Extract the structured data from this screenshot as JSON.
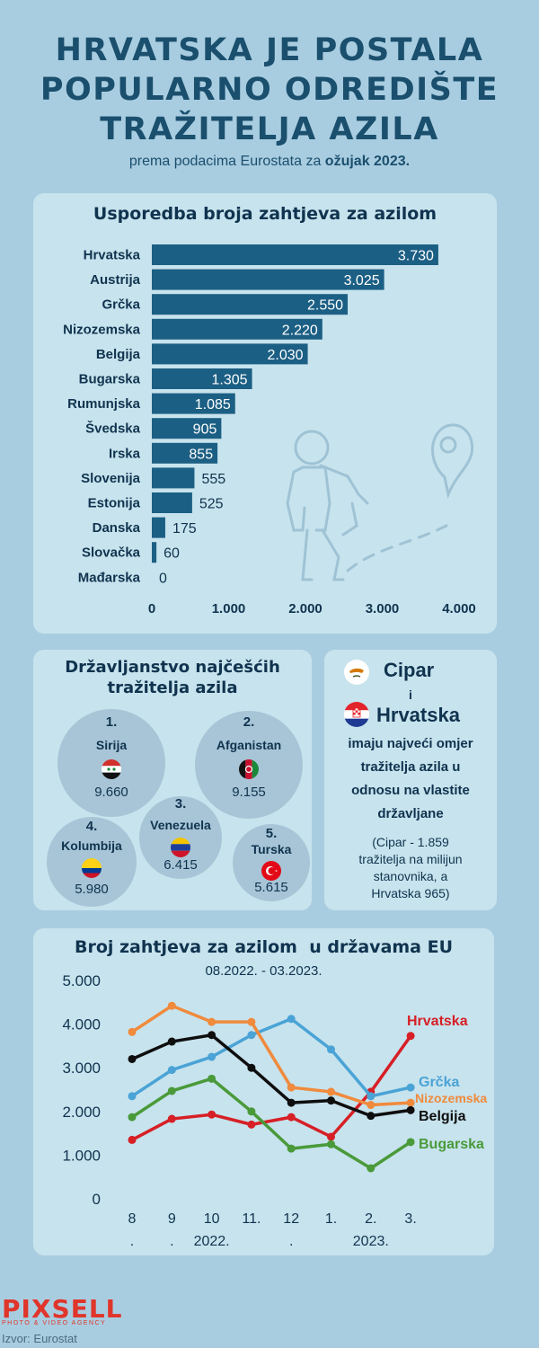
{
  "header": {
    "title_lines": [
      "HRVATSKA JE POSTALA",
      "POPULARNO ODREDIŠTE",
      "TRAŽITELJA AZILA"
    ],
    "subtitle_prefix": "prema podacima Eurostata za ",
    "subtitle_bold": "ožujak 2023."
  },
  "chart_data": [
    {
      "type": "bar",
      "orientation": "horizontal",
      "title": "Usporedba broja zahtjeva za azilom",
      "categories": [
        "Hrvatska",
        "Austrija",
        "Grčka",
        "Nizozemska",
        "Belgija",
        "Bugarska",
        "Rumunjska",
        "Švedska",
        "Irska",
        "Slovenija",
        "Estonija",
        "Danska",
        "Slovačka",
        "Mađarska"
      ],
      "values": [
        3730,
        3025,
        2550,
        2220,
        2030,
        1305,
        1085,
        905,
        855,
        555,
        525,
        175,
        60,
        0
      ],
      "value_labels": [
        "3.730",
        "3.025",
        "2.550",
        "2.220",
        "2.030",
        "1.305",
        "1.085",
        "905",
        "855",
        "555",
        "525",
        "175",
        "60",
        "0"
      ],
      "xlim": [
        0,
        4000
      ],
      "x_ticks": [
        "0",
        "1.000",
        "2.000",
        "3.000",
        "4.000"
      ],
      "bar_color": "#1c5f84"
    },
    {
      "type": "line",
      "title": "Broj zahtjeva za azilom  u državama EU",
      "subtitle": "08.2022. - 03.2023.",
      "x_ticks": [
        {
          "top": "8",
          "bottom": "."
        },
        {
          "top": "9",
          "bottom": "."
        },
        {
          "top": "10",
          "bottom": "2022."
        },
        {
          "top": "11.",
          "bottom": ""
        },
        {
          "top": "12",
          "bottom": "."
        },
        {
          "top": "1.",
          "bottom": ""
        },
        {
          "top": "2.",
          "bottom": "2023."
        },
        {
          "top": "3.",
          "bottom": ""
        }
      ],
      "ylim": [
        0,
        5000
      ],
      "y_ticks": [
        "0",
        "1.000",
        "2.000",
        "3.000",
        "4.000",
        "5.000"
      ],
      "series": [
        {
          "name": "Hrvatska",
          "color": "#d71f26",
          "values": [
            1350,
            1830,
            1930,
            1700,
            1870,
            1420,
            2450,
            3730
          ]
        },
        {
          "name": "Grčka",
          "color": "#4aa3d6",
          "values": [
            2350,
            2950,
            3250,
            3750,
            4120,
            3420,
            2350,
            2550
          ]
        },
        {
          "name": "Nizozemska",
          "color": "#f08a3c",
          "values": [
            3820,
            4420,
            4050,
            4050,
            2550,
            2450,
            2150,
            2200
          ]
        },
        {
          "name": "Belgija",
          "color": "#0e0e0e",
          "values": [
            3200,
            3600,
            3750,
            3000,
            2200,
            2250,
            1900,
            2030
          ]
        },
        {
          "name": "Bugarska",
          "color": "#4a9a3a",
          "values": [
            1870,
            2470,
            2750,
            2000,
            1150,
            1250,
            700,
            1300
          ]
        }
      ]
    }
  ],
  "nationality": {
    "title_lines": [
      "Državljanstvo najčešćih",
      "tražitelja azila"
    ],
    "items": [
      {
        "rank": "1.",
        "name": "Sirija",
        "value": "9.660",
        "flag": "syria-flag"
      },
      {
        "rank": "2.",
        "name": "Afganistan",
        "value": "9.155",
        "flag": "afghanistan-flag"
      },
      {
        "rank": "3.",
        "name": "Venezuela",
        "value": "6.415",
        "flag": "venezuela-flag"
      },
      {
        "rank": "4.",
        "name": "Kolumbija",
        "value": "5.980",
        "flag": "colombia-flag"
      },
      {
        "rank": "5.",
        "name": "Turska",
        "value": "5.615",
        "flag": "turkey-flag"
      }
    ]
  },
  "ratio": {
    "country1": "Cipar",
    "connector": "i",
    "country2": "Hrvatska",
    "text_lines": [
      "imaju najveći omjer",
      "tražitelja azila u",
      "odnosu na vlastite",
      "državljane"
    ],
    "note_lines": [
      "(Cipar - 1.859",
      "tražitelja na milijun",
      "stanovnika, a",
      "Hrvatska 965)"
    ]
  },
  "footer": {
    "logo": "PIXSELL",
    "logo_sub": "PHOTO & VIDEO AGENCY",
    "source": "Izvor: Eurostat"
  }
}
